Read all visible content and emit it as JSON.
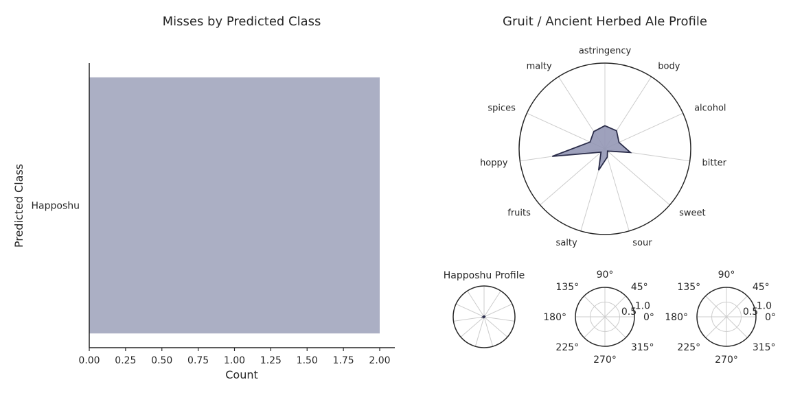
{
  "chart_data": [
    {
      "type": "bar",
      "orientation": "horizontal",
      "title": "Misses by Predicted Class",
      "xlabel": "Count",
      "ylabel": "Predicted Class",
      "categories": [
        "Happoshu"
      ],
      "values": [
        2
      ],
      "xlim": [
        0,
        2.1
      ],
      "xticks": [
        "0.00",
        "0.25",
        "0.50",
        "0.75",
        "1.00",
        "1.25",
        "1.50",
        "1.75",
        "2.00"
      ],
      "bar_color": "#abafc4",
      "grid": false
    },
    {
      "type": "radar",
      "title": "Gruit / Ancient Herbed Ale Profile",
      "axes": [
        "astringency",
        "body",
        "alcohol",
        "bitter",
        "sweet",
        "sour",
        "salty",
        "fruits",
        "hoppy",
        "spices",
        "malty"
      ],
      "values": [
        0.27,
        0.25,
        0.18,
        0.3,
        0.04,
        0.1,
        0.26,
        0.06,
        0.62,
        0.19,
        0.24
      ],
      "rlim": [
        0,
        1
      ],
      "fill_color": "#9497b5",
      "line_color": "#2b2d4a"
    },
    {
      "type": "radar",
      "title": "Happoshu Profile",
      "axes_count": 11,
      "values": [
        0.03,
        0.02,
        0.03,
        0.02,
        0.02,
        0.02,
        0.03,
        0.02,
        0.05,
        0.02,
        0.03
      ],
      "rlim": [
        0,
        1
      ],
      "fill_color": "#9497b5",
      "line_color": "#2b2d4a"
    },
    {
      "type": "polar",
      "title": "",
      "angle_labels": [
        "0°",
        "45°",
        "90°",
        "135°",
        "180°",
        "225°",
        "270°",
        "315°"
      ],
      "radial_ticks": [
        "0.5",
        "1.0"
      ],
      "empty": true
    },
    {
      "type": "polar",
      "title": "",
      "angle_labels": [
        "0°",
        "45°",
        "90°",
        "135°",
        "180°",
        "225°",
        "270°",
        "315°"
      ],
      "radial_ticks": [
        "0.5",
        "1.0"
      ],
      "empty": true
    }
  ]
}
